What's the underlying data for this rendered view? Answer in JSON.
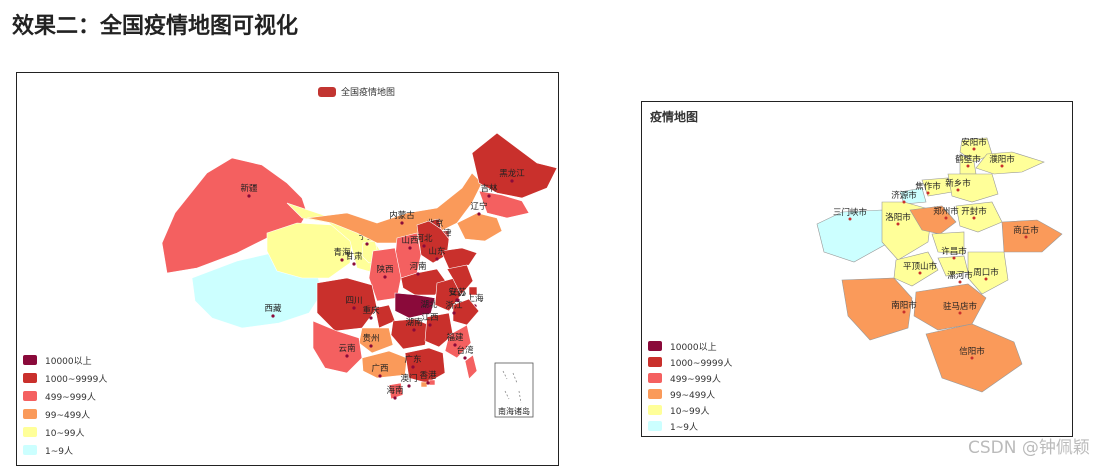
{
  "page": {
    "heading": "效果二：全国疫情地图可视化",
    "watermark": "CSDN @钟佩颖"
  },
  "chart_data": [
    {
      "type": "choropleth-map",
      "legend_entry": "全国疫情地图",
      "legend_color": "#c23531",
      "inset_label": "南海诸岛",
      "visual_map": [
        {
          "label": "10000以上",
          "color": "#8a0a3a"
        },
        {
          "label": "1000~9999人",
          "color": "#c9302c"
        },
        {
          "label": "499~999人",
          "color": "#f46060"
        },
        {
          "label": "99~499人",
          "color": "#fa9a5a"
        },
        {
          "label": "10~99人",
          "color": "#ffff99"
        },
        {
          "label": "1~9人",
          "color": "#ccffff"
        }
      ],
      "regions": [
        {
          "name": "新疆",
          "level": 2
        },
        {
          "name": "西藏",
          "level": 5
        },
        {
          "name": "青海",
          "level": 4
        },
        {
          "name": "甘肃",
          "level": 4
        },
        {
          "name": "宁夏",
          "level": 4
        },
        {
          "name": "内蒙古",
          "level": 3
        },
        {
          "name": "黑龙江",
          "level": 1
        },
        {
          "name": "吉林",
          "level": 2
        },
        {
          "name": "辽宁",
          "level": 3
        },
        {
          "name": "北京",
          "level": 1
        },
        {
          "name": "天津",
          "level": 2
        },
        {
          "name": "河北",
          "level": 1
        },
        {
          "name": "山西",
          "level": 2
        },
        {
          "name": "山东",
          "level": 1
        },
        {
          "name": "河南",
          "level": 1
        },
        {
          "name": "陕西",
          "level": 2
        },
        {
          "name": "四川",
          "level": 1
        },
        {
          "name": "重庆",
          "level": 1
        },
        {
          "name": "湖北",
          "level": 0
        },
        {
          "name": "湖南",
          "level": 1
        },
        {
          "name": "安徽",
          "level": 1
        },
        {
          "name": "江苏",
          "level": 1
        },
        {
          "name": "上海",
          "level": 1
        },
        {
          "name": "浙江",
          "level": 1
        },
        {
          "name": "江西",
          "level": 1
        },
        {
          "name": "福建",
          "level": 2
        },
        {
          "name": "台湾",
          "level": 2
        },
        {
          "name": "贵州",
          "level": 3
        },
        {
          "name": "云南",
          "level": 2
        },
        {
          "name": "广西",
          "level": 3
        },
        {
          "name": "广东",
          "level": 1
        },
        {
          "name": "澳门",
          "level": 3
        },
        {
          "name": "香港",
          "level": 2
        },
        {
          "name": "海南",
          "level": 2
        }
      ]
    },
    {
      "type": "choropleth-map",
      "title": "疫情地图",
      "visual_map": [
        {
          "label": "10000以上",
          "color": "#8a0a3a"
        },
        {
          "label": "1000~9999人",
          "color": "#c9302c"
        },
        {
          "label": "499~999人",
          "color": "#f46060"
        },
        {
          "label": "99~499人",
          "color": "#fa9a5a"
        },
        {
          "label": "10~99人",
          "color": "#ffff99"
        },
        {
          "label": "1~9人",
          "color": "#ccffff"
        }
      ],
      "regions": [
        {
          "name": "安阳市",
          "level": 4
        },
        {
          "name": "鹤壁市",
          "level": 4
        },
        {
          "name": "濮阳市",
          "level": 4
        },
        {
          "name": "焦作市",
          "level": 4
        },
        {
          "name": "新乡市",
          "level": 4
        },
        {
          "name": "济源市",
          "level": 5
        },
        {
          "name": "三门峡市",
          "level": 5
        },
        {
          "name": "洛阳市",
          "level": 4
        },
        {
          "name": "郑州市",
          "level": 3
        },
        {
          "name": "开封市",
          "level": 4
        },
        {
          "name": "商丘市",
          "level": 3
        },
        {
          "name": "许昌市",
          "level": 4
        },
        {
          "name": "平顶山市",
          "level": 4
        },
        {
          "name": "漯河市",
          "level": 4
        },
        {
          "name": "周口市",
          "level": 4
        },
        {
          "name": "南阳市",
          "level": 3
        },
        {
          "name": "驻马店市",
          "level": 3
        },
        {
          "name": "信阳市",
          "level": 3
        }
      ]
    }
  ]
}
